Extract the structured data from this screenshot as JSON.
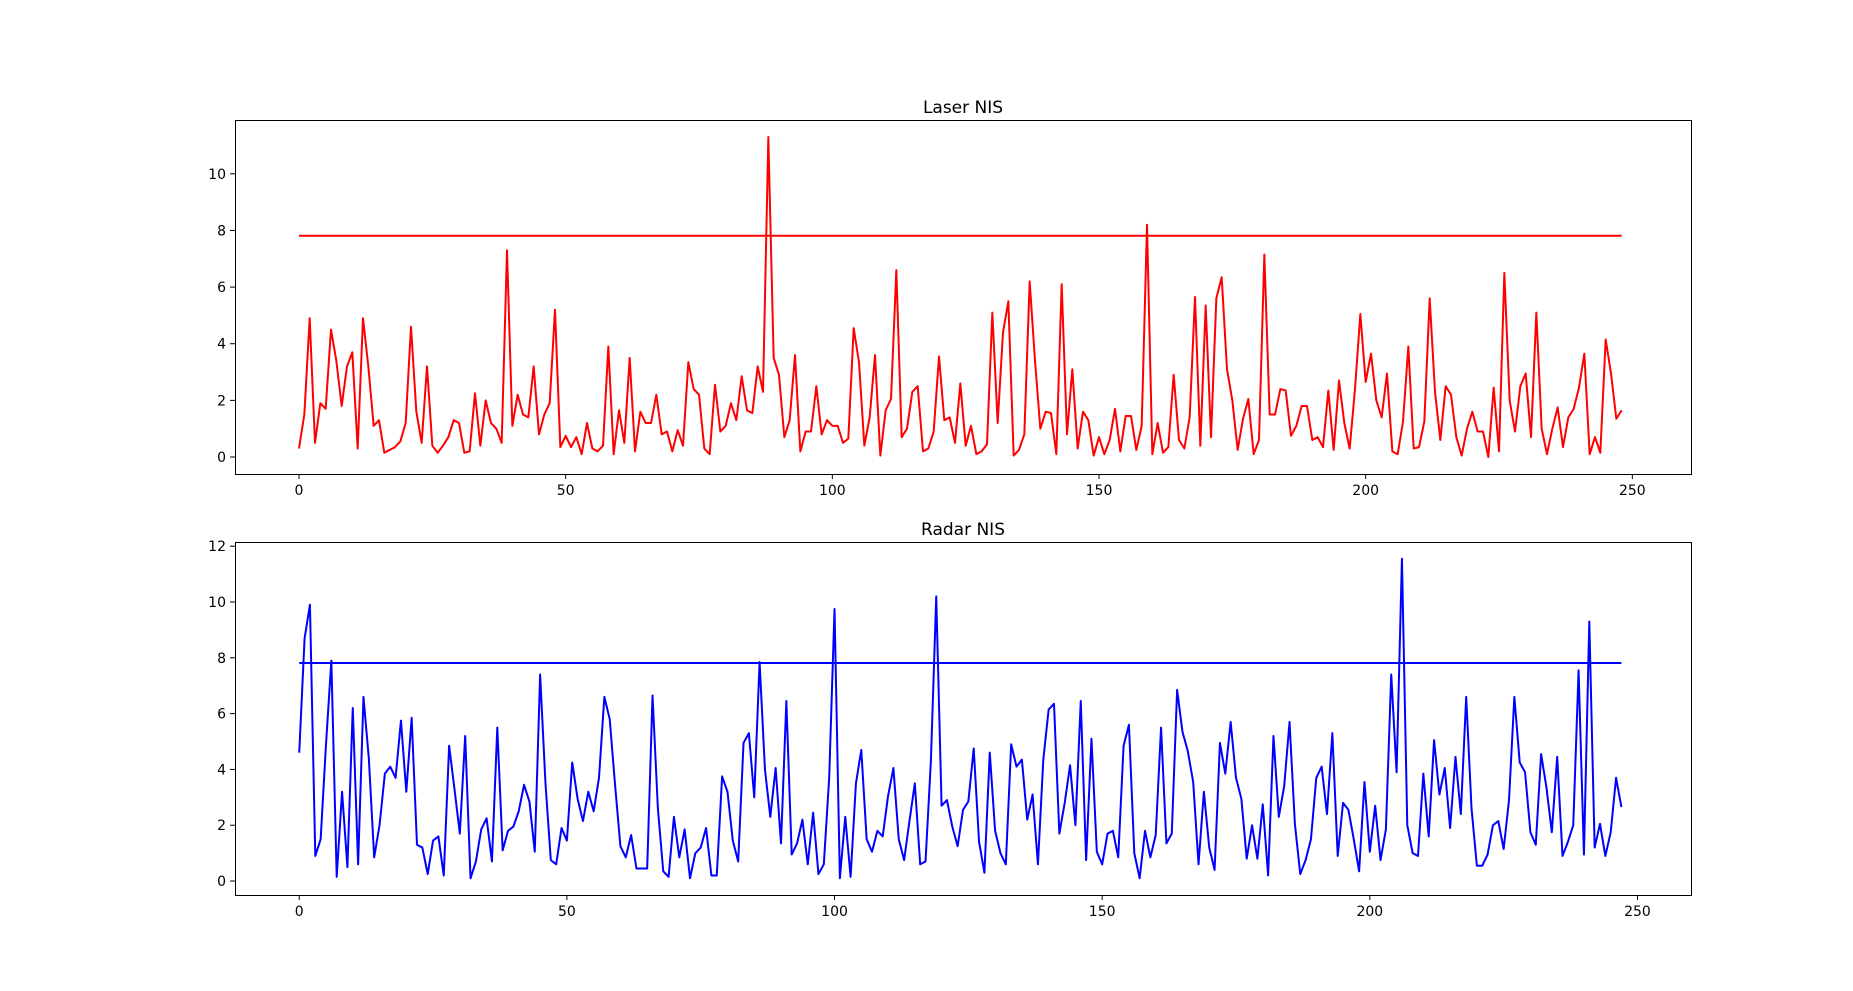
{
  "chart_data": [
    {
      "type": "line",
      "title": "Laser NIS",
      "xlim": [
        -12,
        261
      ],
      "ylim": [
        -0.6,
        11.9
      ],
      "xticks": [
        0,
        50,
        100,
        150,
        200,
        250
      ],
      "yticks": [
        0,
        2,
        4,
        6,
        8,
        10
      ],
      "series": [
        {
          "color": "#ff0000",
          "x": [
            0,
            1,
            2,
            3,
            4,
            5,
            6,
            7,
            8,
            9,
            10,
            11,
            12,
            13,
            14,
            15,
            16,
            17,
            18,
            19,
            20,
            21,
            22,
            23,
            24,
            25,
            26,
            27,
            28,
            29,
            30,
            31,
            32,
            33,
            34,
            35,
            36,
            37,
            38,
            39,
            40,
            41,
            42,
            43,
            44,
            45,
            46,
            47,
            48,
            49,
            50,
            51,
            52,
            53,
            54,
            55,
            56,
            57,
            58,
            59,
            60,
            61,
            62,
            63,
            64,
            65,
            66,
            67,
            68,
            69,
            70,
            71,
            72,
            73,
            74,
            75,
            76,
            77,
            78,
            79,
            80,
            81,
            82,
            83,
            84,
            85,
            86,
            87,
            88,
            89,
            90,
            91,
            92,
            93,
            94,
            95,
            96,
            97,
            98,
            99,
            100,
            101,
            102,
            103,
            104,
            105,
            106,
            107,
            108,
            109,
            110,
            111,
            112,
            113,
            114,
            115,
            116,
            117,
            118,
            119,
            120,
            121,
            122,
            123,
            124,
            125,
            126,
            127,
            128,
            129,
            130,
            131,
            132,
            133,
            134,
            135,
            136,
            137,
            138,
            139,
            140,
            141,
            142,
            143,
            144,
            145,
            146,
            147,
            148,
            149,
            150,
            151,
            152,
            153,
            154,
            155,
            156,
            157,
            158,
            159,
            160,
            161,
            162,
            163,
            164,
            165,
            166,
            167,
            168,
            169,
            170,
            171,
            172,
            173,
            174,
            175,
            176,
            177,
            178,
            179,
            180,
            181,
            182,
            183,
            184,
            185,
            186,
            187,
            188,
            189,
            190,
            191,
            192,
            193,
            194,
            195,
            196,
            197,
            198,
            199,
            200,
            201,
            202,
            203,
            204,
            205,
            206,
            207,
            208,
            209,
            210,
            211,
            212,
            213,
            214,
            215,
            216,
            217,
            218,
            219,
            220,
            221,
            222,
            223,
            224,
            225,
            226,
            227,
            228,
            229,
            230,
            231,
            232,
            233,
            234,
            235,
            236,
            237,
            238,
            239,
            240,
            241,
            242,
            243,
            244,
            245,
            246,
            247,
            248
          ],
          "y": [
            0.3,
            1.5,
            4.9,
            0.5,
            1.9,
            1.7,
            4.5,
            3.4,
            1.8,
            3.2,
            3.7,
            0.3,
            4.9,
            3.2,
            1.1,
            1.3,
            0.15,
            0.25,
            0.35,
            0.55,
            1.2,
            4.6,
            1.6,
            0.5,
            3.2,
            0.4,
            0.15,
            0.4,
            0.7,
            1.3,
            1.2,
            0.15,
            0.2,
            2.25,
            0.4,
            2.0,
            1.2,
            1.0,
            0.5,
            7.3,
            1.1,
            2.2,
            1.5,
            1.4,
            3.2,
            0.8,
            1.5,
            1.9,
            5.2,
            0.35,
            0.75,
            0.35,
            0.7,
            0.1,
            1.2,
            0.3,
            0.2,
            0.4,
            3.9,
            0.1,
            1.65,
            0.5,
            3.5,
            0.2,
            1.6,
            1.2,
            1.2,
            2.2,
            0.8,
            0.9,
            0.2,
            0.95,
            0.4,
            3.35,
            2.4,
            2.2,
            0.3,
            0.1,
            2.55,
            0.9,
            1.1,
            1.9,
            1.3,
            2.85,
            1.65,
            1.55,
            3.2,
            2.3,
            11.3,
            3.5,
            2.9,
            0.7,
            1.3,
            3.6,
            0.2,
            0.9,
            0.9,
            2.5,
            0.8,
            1.3,
            1.1,
            1.1,
            0.5,
            0.65,
            4.55,
            3.35,
            0.4,
            1.4,
            3.6,
            0.05,
            1.65,
            2.05,
            6.6,
            0.7,
            1.0,
            2.3,
            2.5,
            0.2,
            0.3,
            0.9,
            3.55,
            1.3,
            1.4,
            0.5,
            2.6,
            0.4,
            1.1,
            0.1,
            0.2,
            0.45,
            5.1,
            1.2,
            4.4,
            5.5,
            0.05,
            0.25,
            0.8,
            6.2,
            3.4,
            1.0,
            1.6,
            1.55,
            0.1,
            6.1,
            0.8,
            3.1,
            0.3,
            1.6,
            1.3,
            0.05,
            0.7,
            0.1,
            0.6,
            1.7,
            0.2,
            1.45,
            1.45,
            0.25,
            1.1,
            8.2,
            0.1,
            1.2,
            0.15,
            0.35,
            2.9,
            0.6,
            0.3,
            1.4,
            5.65,
            0.4,
            5.35,
            0.7,
            5.6,
            6.35,
            3.1,
            2.0,
            0.25,
            1.35,
            2.05,
            0.1,
            0.6,
            7.15,
            1.5,
            1.5,
            2.4,
            2.35,
            0.75,
            1.1,
            1.8,
            1.8,
            0.6,
            0.7,
            0.35,
            2.35,
            0.25,
            2.7,
            1.2,
            0.3,
            2.4,
            5.05,
            2.65,
            3.65,
            2.0,
            1.4,
            2.95,
            0.2,
            0.1,
            1.25,
            3.9,
            0.3,
            0.35,
            1.25,
            5.6,
            2.3,
            0.6,
            2.5,
            2.2,
            0.7,
            0.05,
            1.0,
            1.6,
            0.9,
            0.9,
            0.0,
            2.45,
            0.2,
            6.5,
            2.0,
            0.9,
            2.5,
            2.95,
            0.7,
            5.1,
            1.0,
            0.1,
            1.0,
            1.75,
            0.35,
            1.4,
            1.7,
            2.45,
            3.65,
            0.1,
            0.7,
            0.15,
            4.15,
            2.95,
            1.35,
            1.65
          ]
        },
        {
          "color": "#ff0000",
          "x": [
            0,
            248
          ],
          "y": [
            7.815,
            7.815
          ]
        }
      ]
    },
    {
      "type": "line",
      "title": "Radar NIS",
      "xlim": [
        -12,
        260
      ],
      "ylim": [
        -0.5,
        12.15
      ],
      "xticks": [
        0,
        50,
        100,
        150,
        200,
        250
      ],
      "yticks": [
        0,
        2,
        4,
        6,
        8,
        10,
        12
      ],
      "series": [
        {
          "color": "#0000ff",
          "x": [
            0,
            1,
            2,
            3,
            4,
            5,
            6,
            7,
            8,
            9,
            10,
            11,
            12,
            13,
            14,
            15,
            16,
            17,
            18,
            19,
            20,
            21,
            22,
            23,
            24,
            25,
            26,
            27,
            28,
            29,
            30,
            31,
            32,
            33,
            34,
            35,
            36,
            37,
            38,
            39,
            40,
            41,
            42,
            43,
            44,
            45,
            46,
            47,
            48,
            49,
            50,
            51,
            52,
            53,
            54,
            55,
            56,
            57,
            58,
            59,
            60,
            61,
            62,
            63,
            64,
            65,
            66,
            67,
            68,
            69,
            70,
            71,
            72,
            73,
            74,
            75,
            76,
            77,
            78,
            79,
            80,
            81,
            82,
            83,
            84,
            85,
            86,
            87,
            88,
            89,
            90,
            91,
            92,
            93,
            94,
            95,
            96,
            97,
            98,
            99,
            100,
            101,
            102,
            103,
            104,
            105,
            106,
            107,
            108,
            109,
            110,
            111,
            112,
            113,
            114,
            115,
            116,
            117,
            118,
            119,
            120,
            121,
            122,
            123,
            124,
            125,
            126,
            127,
            128,
            129,
            130,
            131,
            132,
            133,
            134,
            135,
            136,
            137,
            138,
            139,
            140,
            141,
            142,
            143,
            144,
            145,
            146,
            147,
            148,
            149,
            150,
            151,
            152,
            153,
            154,
            155,
            156,
            157,
            158,
            159,
            160,
            161,
            162,
            163,
            164,
            165,
            166,
            167,
            168,
            169,
            170,
            171,
            172,
            173,
            174,
            175,
            176,
            177,
            178,
            179,
            180,
            181,
            182,
            183,
            184,
            185,
            186,
            187,
            188,
            189,
            190,
            191,
            192,
            193,
            194,
            195,
            196,
            197,
            198,
            199,
            200,
            201,
            202,
            203,
            204,
            205,
            206,
            207,
            208,
            209,
            210,
            211,
            212,
            213,
            214,
            215,
            216,
            217,
            218,
            219,
            220,
            221,
            222,
            223,
            224,
            225,
            226,
            227,
            228,
            229,
            230,
            231,
            232,
            233,
            234,
            235,
            236,
            237,
            238,
            239,
            240,
            241,
            242,
            243,
            244,
            245,
            246,
            247
          ],
          "y": [
            4.6,
            8.7,
            9.9,
            0.9,
            1.5,
            4.9,
            7.9,
            0.15,
            3.2,
            0.5,
            6.2,
            0.6,
            6.6,
            4.4,
            0.85,
            2.0,
            3.85,
            4.1,
            3.7,
            5.75,
            3.2,
            5.85,
            1.3,
            1.2,
            0.25,
            1.45,
            1.6,
            0.2,
            4.85,
            3.3,
            1.7,
            5.2,
            0.1,
            0.7,
            1.85,
            2.25,
            0.7,
            5.5,
            1.1,
            1.8,
            1.95,
            2.5,
            3.45,
            2.85,
            1.05,
            7.4,
            3.5,
            0.75,
            0.6,
            1.9,
            1.45,
            4.25,
            2.95,
            2.15,
            3.2,
            2.5,
            3.7,
            6.6,
            5.8,
            3.45,
            1.25,
            0.85,
            1.65,
            0.45,
            0.45,
            0.45,
            6.65,
            2.6,
            0.35,
            0.15,
            2.3,
            0.85,
            1.85,
            0.1,
            1.0,
            1.2,
            1.9,
            0.2,
            0.2,
            3.75,
            3.2,
            1.45,
            0.7,
            4.95,
            5.3,
            3.0,
            7.85,
            4.0,
            2.3,
            4.05,
            1.35,
            6.45,
            0.95,
            1.35,
            2.2,
            0.6,
            2.45,
            0.25,
            0.6,
            3.7,
            9.75,
            0.1,
            2.3,
            0.15,
            3.5,
            4.7,
            1.5,
            1.05,
            1.8,
            1.6,
            3.05,
            4.05,
            1.5,
            0.75,
            2.15,
            3.5,
            0.6,
            0.7,
            4.3,
            10.2,
            2.7,
            2.9,
            1.95,
            1.25,
            2.55,
            2.85,
            4.75,
            1.4,
            0.3,
            4.6,
            1.8,
            1.0,
            0.6,
            4.9,
            4.1,
            4.35,
            2.2,
            3.1,
            0.6,
            4.35,
            6.15,
            6.35,
            1.7,
            2.8,
            4.15,
            2.0,
            6.45,
            0.75,
            5.1,
            1.05,
            0.6,
            1.7,
            1.8,
            0.85,
            4.85,
            5.6,
            1.0,
            0.1,
            1.8,
            0.85,
            1.65,
            5.5,
            1.35,
            1.7,
            6.85,
            5.35,
            4.65,
            3.55,
            0.6,
            3.2,
            1.2,
            0.4,
            4.95,
            3.85,
            5.7,
            3.7,
            2.95,
            0.8,
            2.0,
            0.8,
            2.75,
            0.2,
            5.2,
            2.3,
            3.4,
            5.7,
            2.05,
            0.25,
            0.75,
            1.5,
            3.7,
            4.1,
            2.4,
            5.3,
            0.9,
            2.8,
            2.55,
            1.5,
            0.35,
            3.55,
            1.05,
            2.7,
            0.75,
            1.85,
            7.4,
            3.9,
            11.55,
            2.0,
            1.0,
            0.9,
            3.85,
            1.6,
            5.05,
            3.1,
            4.05,
            1.9,
            4.45,
            2.4,
            6.6,
            2.6,
            0.55,
            0.55,
            0.95,
            2.0,
            2.15,
            1.15,
            2.9,
            6.6,
            4.25,
            3.9,
            1.75,
            1.3,
            4.55,
            3.35,
            1.75,
            4.45,
            0.9,
            1.4,
            2.0,
            7.55,
            0.95,
            9.3,
            1.2,
            2.05,
            0.9,
            1.75,
            3.7,
            2.65
          ]
        },
        {
          "color": "#0000ff",
          "x": [
            0,
            247
          ],
          "y": [
            7.815,
            7.815
          ]
        }
      ]
    }
  ]
}
